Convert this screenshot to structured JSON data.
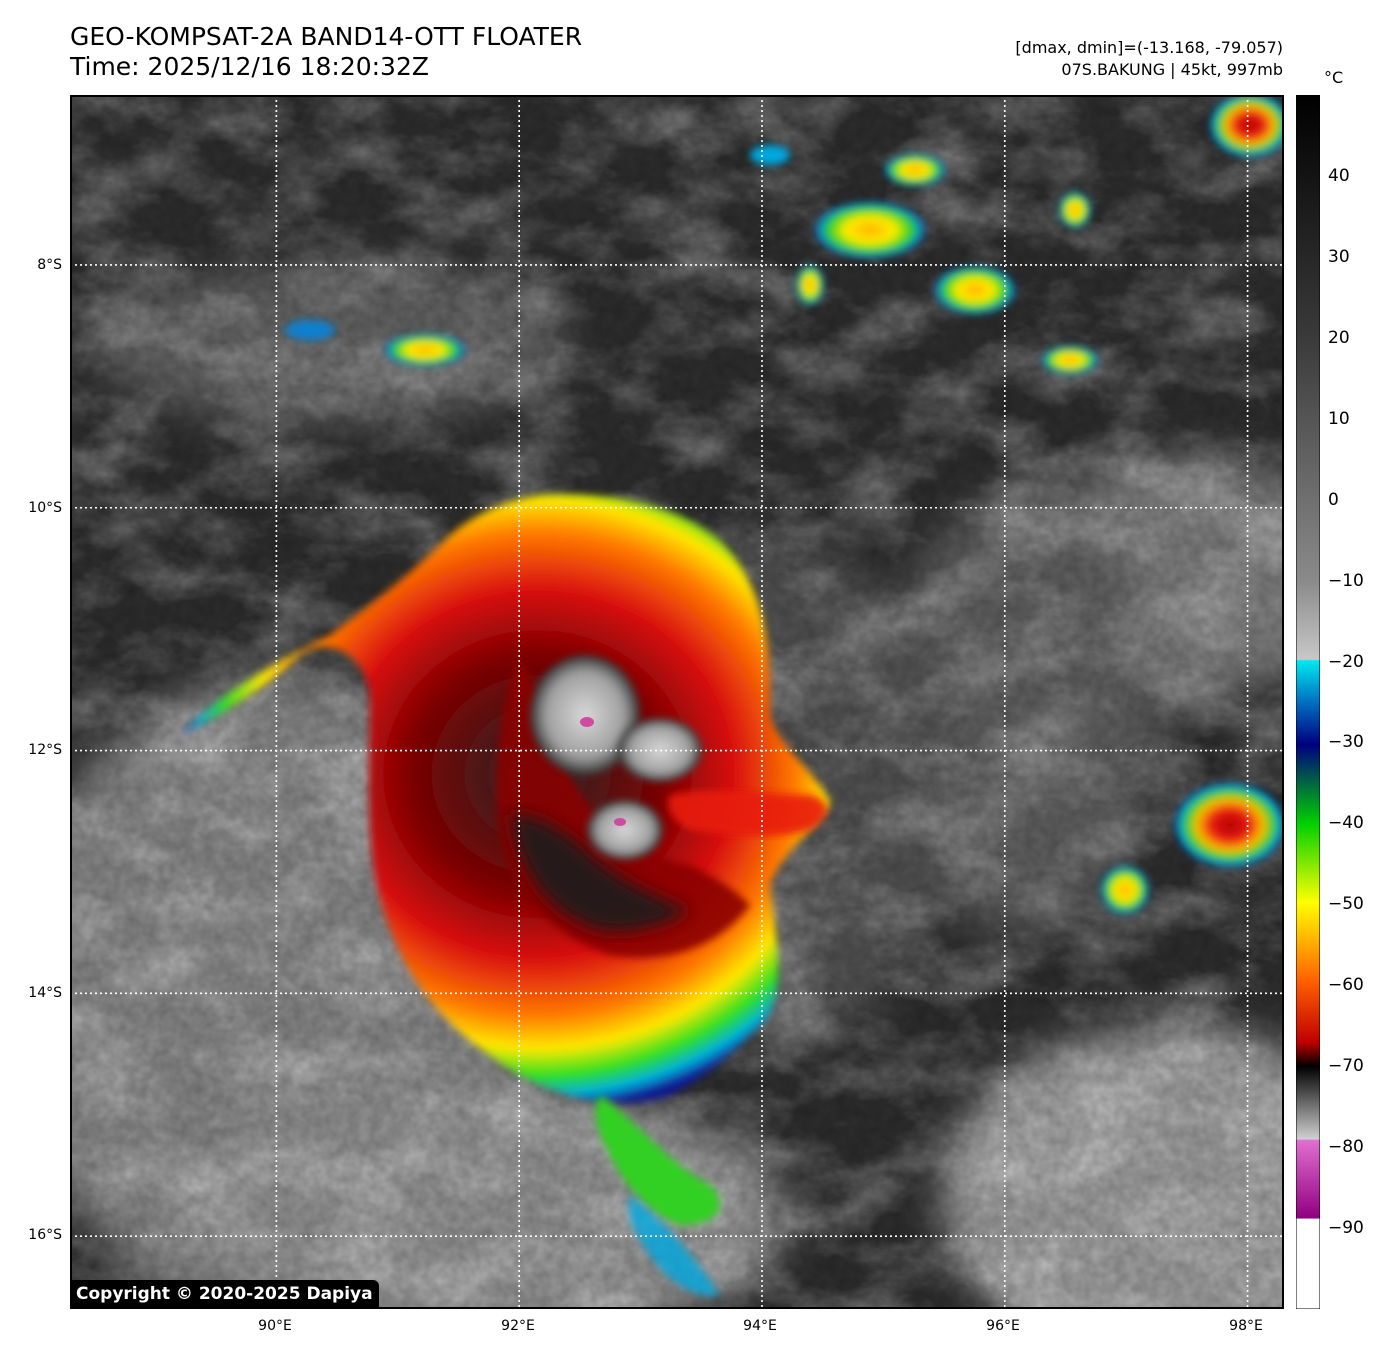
{
  "header": {
    "title_line1": "GEO-KOMPSAT-2A BAND14-OTT FLOATER",
    "title_line2": "Time: 2025/12/16 18:20:32Z",
    "stats_line": "[dmax, dmin]=(-13.168, -79.057)",
    "storm_line": "07S.BAKUNG | 45kt, 997mb"
  },
  "map": {
    "lon_range": [
      88.3,
      98.3
    ],
    "lat_range": [
      -16.6,
      -6.6
    ],
    "lat_gridlines": [
      -8,
      -10,
      -12,
      -14,
      -16
    ],
    "lon_gridlines": [
      90,
      92,
      94,
      96,
      98
    ],
    "lat_labels": [
      "8°S",
      "10°S",
      "12°S",
      "14°S",
      "16°S"
    ],
    "lon_labels": [
      "90°E",
      "92°E",
      "94°E",
      "96°E",
      "98°E"
    ],
    "gridline_style": "dotted white"
  },
  "colorbar": {
    "unit": "°C",
    "range": [
      -100,
      50
    ],
    "ticks": [
      40,
      30,
      20,
      10,
      0,
      -10,
      -20,
      -30,
      -40,
      -50,
      -60,
      -70,
      -80,
      -90
    ],
    "tick_labels": [
      "40",
      "30",
      "20",
      "10",
      "0",
      "−10",
      "−20",
      "−30",
      "−40",
      "−50",
      "−60",
      "−70",
      "−80",
      "−90"
    ]
  },
  "copyright": "Copyright © 2020-2025 Dapiya"
}
